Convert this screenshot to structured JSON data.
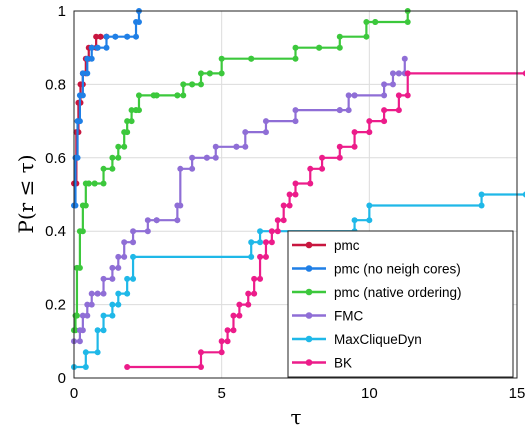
{
  "chart_data": {
    "type": "line",
    "xlabel": "τ",
    "ylabel": "P(r ≤ τ)",
    "xlim": [
      0,
      15
    ],
    "ylim": [
      0,
      1
    ],
    "x_ticks": [
      0,
      5,
      10,
      15
    ],
    "y_ticks": [
      0,
      0.2,
      0.4,
      0.6,
      0.8,
      1
    ],
    "grid": true,
    "legend_placement": "bottom-right",
    "step": "post",
    "series": [
      {
        "name": "pmc",
        "color": "#c8163f",
        "x": [
          0,
          0.08,
          0.15,
          0.22,
          0.3,
          0.4,
          0.5,
          0.6,
          0.75,
          0.9,
          1.1
        ],
        "y": [
          0.53,
          0.67,
          0.75,
          0.8,
          0.83,
          0.87,
          0.9,
          0.9,
          0.93,
          0.93,
          0.93
        ]
      },
      {
        "name": "pmc (no neigh cores)",
        "color": "#1f7fe6",
        "x": [
          0,
          0.05,
          0.12,
          0.2,
          0.3,
          0.45,
          0.6,
          0.8,
          1.1,
          1.4,
          1.8,
          2.1,
          2.2
        ],
        "y": [
          0.47,
          0.6,
          0.7,
          0.77,
          0.83,
          0.87,
          0.9,
          0.9,
          0.93,
          0.93,
          0.93,
          0.97,
          1.0
        ]
      },
      {
        "name": "pmc (native ordering)",
        "color": "#3cc83c",
        "x": [
          0,
          0.05,
          0.1,
          0.2,
          0.3,
          0.4,
          0.5,
          0.7,
          1.0,
          1.3,
          1.5,
          1.7,
          1.8,
          1.95,
          2.1,
          2.2,
          2.7,
          2.8,
          3.5,
          3.7,
          4.0,
          4.3,
          4.6,
          5.0,
          6.0,
          7.5,
          8.3,
          9.0,
          9.9,
          10.2,
          11.3
        ],
        "y": [
          0.13,
          0.17,
          0.3,
          0.4,
          0.47,
          0.53,
          0.53,
          0.53,
          0.57,
          0.6,
          0.63,
          0.67,
          0.7,
          0.73,
          0.73,
          0.77,
          0.77,
          0.77,
          0.77,
          0.8,
          0.8,
          0.83,
          0.83,
          0.87,
          0.87,
          0.9,
          0.9,
          0.93,
          0.97,
          0.97,
          1.0
        ]
      },
      {
        "name": "FMC",
        "color": "#8f6ed6",
        "x": [
          0,
          0.2,
          0.3,
          0.45,
          0.6,
          0.8,
          1.0,
          1.3,
          1.5,
          1.7,
          2.0,
          2.5,
          2.8,
          3.5,
          3.6,
          4.0,
          4.5,
          4.8,
          5.5,
          5.8,
          6.5,
          7.5,
          9.0,
          9.3,
          9.5,
          10.5,
          10.8,
          11.0,
          11.2
        ],
        "y": [
          0.1,
          0.13,
          0.17,
          0.2,
          0.23,
          0.23,
          0.27,
          0.3,
          0.33,
          0.37,
          0.4,
          0.43,
          0.43,
          0.47,
          0.57,
          0.6,
          0.6,
          0.63,
          0.63,
          0.67,
          0.7,
          0.73,
          0.73,
          0.77,
          0.77,
          0.8,
          0.83,
          0.83,
          0.87
        ]
      },
      {
        "name": "MaxCliqueDyn",
        "color": "#1fb8e8",
        "x": [
          0,
          0.4,
          0.8,
          1.0,
          1.3,
          1.5,
          1.8,
          2.0,
          6.0,
          6.3,
          9.5,
          10.0,
          13.8,
          15.3
        ],
        "y": [
          0.03,
          0.07,
          0.13,
          0.17,
          0.2,
          0.23,
          0.27,
          0.33,
          0.37,
          0.4,
          0.43,
          0.47,
          0.5,
          0.5
        ]
      },
      {
        "name": "BK",
        "color": "#ec1c8a",
        "x": [
          1.8,
          4.3,
          5.0,
          5.2,
          5.4,
          5.6,
          5.9,
          6.1,
          6.3,
          6.5,
          6.7,
          6.9,
          7.1,
          7.3,
          7.5,
          8.0,
          8.4,
          9.0,
          9.5,
          10.0,
          10.5,
          11.0,
          11.3,
          15.3
        ],
        "y": [
          0.03,
          0.07,
          0.1,
          0.13,
          0.17,
          0.2,
          0.23,
          0.27,
          0.33,
          0.37,
          0.4,
          0.43,
          0.47,
          0.5,
          0.53,
          0.57,
          0.6,
          0.63,
          0.67,
          0.7,
          0.73,
          0.77,
          0.83,
          0.83
        ]
      }
    ]
  }
}
